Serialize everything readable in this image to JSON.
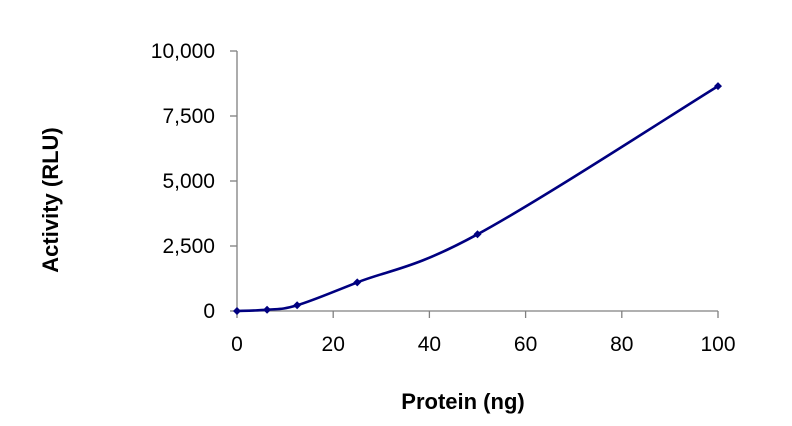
{
  "chart_data": {
    "type": "line",
    "title": "",
    "xlabel": "Protein (ng)",
    "ylabel": "Activity (RLU)",
    "xlim": [
      0,
      100
    ],
    "ylim": [
      0,
      10000
    ],
    "x_ticks": [
      0,
      20,
      40,
      60,
      80,
      100
    ],
    "y_ticks": [
      0,
      2500,
      5000,
      7500,
      10000
    ],
    "x_tick_labels": [
      "0",
      "20",
      "40",
      "60",
      "80",
      "100"
    ],
    "y_tick_labels": [
      "0",
      "2,500",
      "5,000",
      "7,500",
      "10,000"
    ],
    "grid": false,
    "legend": "none",
    "series": [
      {
        "x": [
          0,
          6.25,
          12.5,
          25,
          50,
          100
        ],
        "y": [
          0,
          50,
          220,
          1100,
          2950,
          8650
        ]
      }
    ],
    "colors": {
      "line": "#000080",
      "axis": "#808080",
      "text": "#000000"
    }
  }
}
